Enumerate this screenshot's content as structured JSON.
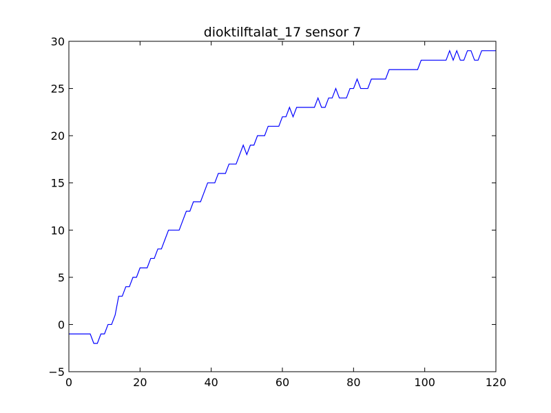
{
  "chart_data": {
    "type": "line",
    "title": "dioktilftalat_17 sensor 7",
    "xlabel": "",
    "ylabel": "",
    "xlim": [
      0,
      120
    ],
    "ylim": [
      -5,
      30
    ],
    "xticks": [
      0,
      20,
      40,
      60,
      80,
      100,
      120
    ],
    "yticks": [
      -5,
      0,
      5,
      10,
      15,
      20,
      25,
      30
    ],
    "grid": false,
    "colors": {
      "line": "#0000ff",
      "axes": "#000000",
      "background": "#ffffff"
    },
    "series": [
      {
        "points": [
          [
            0,
            -1
          ],
          [
            6,
            -1
          ],
          [
            7,
            -2
          ],
          [
            8,
            -2
          ],
          [
            9,
            -1
          ],
          [
            10,
            -1
          ],
          [
            11,
            0
          ],
          [
            12,
            0
          ],
          [
            13,
            1
          ],
          [
            14,
            3
          ],
          [
            15,
            3
          ],
          [
            16,
            4
          ],
          [
            17,
            4
          ],
          [
            18,
            5
          ],
          [
            19,
            5
          ],
          [
            20,
            6
          ],
          [
            21,
            6
          ],
          [
            22,
            6
          ],
          [
            23,
            7
          ],
          [
            24,
            7
          ],
          [
            25,
            8
          ],
          [
            26,
            8
          ],
          [
            27,
            9
          ],
          [
            28,
            10
          ],
          [
            31,
            10
          ],
          [
            32,
            11
          ],
          [
            33,
            12
          ],
          [
            34,
            12
          ],
          [
            35,
            13
          ],
          [
            36,
            13
          ],
          [
            37,
            13
          ],
          [
            38,
            14
          ],
          [
            39,
            15
          ],
          [
            41,
            15
          ],
          [
            42,
            16
          ],
          [
            44,
            16
          ],
          [
            45,
            17
          ],
          [
            47,
            17
          ],
          [
            48,
            18
          ],
          [
            49,
            19
          ],
          [
            50,
            18
          ],
          [
            51,
            19
          ],
          [
            52,
            19
          ],
          [
            53,
            20
          ],
          [
            55,
            20
          ],
          [
            56,
            21
          ],
          [
            59,
            21
          ],
          [
            60,
            22
          ],
          [
            61,
            22
          ],
          [
            62,
            23
          ],
          [
            63,
            22
          ],
          [
            64,
            23
          ],
          [
            69,
            23
          ],
          [
            70,
            24
          ],
          [
            71,
            23
          ],
          [
            72,
            23
          ],
          [
            73,
            24
          ],
          [
            74,
            24
          ],
          [
            75,
            25
          ],
          [
            76,
            24
          ],
          [
            78,
            24
          ],
          [
            79,
            25
          ],
          [
            80,
            25
          ],
          [
            81,
            26
          ],
          [
            82,
            25
          ],
          [
            84,
            25
          ],
          [
            85,
            26
          ],
          [
            88,
            26
          ],
          [
            89,
            26
          ],
          [
            90,
            27
          ],
          [
            98,
            27
          ],
          [
            99,
            28
          ],
          [
            106,
            28
          ],
          [
            107,
            29
          ],
          [
            108,
            28
          ],
          [
            109,
            29
          ],
          [
            110,
            28
          ],
          [
            111,
            28
          ],
          [
            112,
            29
          ],
          [
            113,
            29
          ],
          [
            114,
            28
          ],
          [
            115,
            28
          ],
          [
            116,
            29
          ],
          [
            120,
            29
          ]
        ]
      }
    ]
  }
}
